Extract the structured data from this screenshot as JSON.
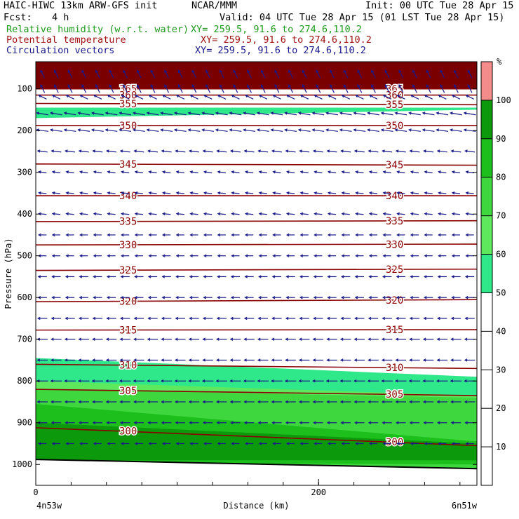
{
  "header": {
    "model": "HAIC-HIWC 13km ARW-GFS init",
    "org": "NCAR/MMM",
    "init": "Init: 00 UTC Tue 28 Apr 15",
    "fcst_label": "Fcst:",
    "fcst_value": "4 h",
    "valid": "Valid: 04 UTC Tue 28 Apr 15 (01 LST Tue 28 Apr 15)"
  },
  "fields": [
    {
      "label": "Relative humidity (w.r.t. water)",
      "xy": "XY= 259.5, 91.6 to 274.6,110.2",
      "color": "#1e9a1e"
    },
    {
      "label": "Potential temperature",
      "xy": "XY= 259.5, 91.6 to 274.6,110.2",
      "color": "#a01414"
    },
    {
      "label": "Circulation vectors",
      "xy": "XY= 259.5, 91.6 to 274.6,110.2",
      "color": "#1a1a8a"
    }
  ],
  "chart_data": {
    "type": "cross-section",
    "ylabel": "Pressure (hPa)",
    "xlabel": "Distance (km)",
    "x_tick_labels": [
      "0",
      "200"
    ],
    "x_ticks": [
      0,
      200
    ],
    "xlim": [
      0,
      312
    ],
    "x_endpoints": [
      "4n53w",
      "6n51w"
    ],
    "y_ticks": [
      100,
      200,
      300,
      400,
      500,
      600,
      700,
      800,
      900,
      1000
    ],
    "ylim": [
      1050,
      35
    ],
    "colorbar": {
      "unit": "%",
      "levels": [
        10,
        20,
        30,
        40,
        50,
        60,
        70,
        80,
        90,
        100
      ],
      "bins": [
        {
          "from": 50,
          "to": 60,
          "color": "#2fe88a"
        },
        {
          "from": 60,
          "to": 70,
          "color": "#5ee85e"
        },
        {
          "from": 70,
          "to": 80,
          "color": "#3ed83e"
        },
        {
          "from": 80,
          "to": 90,
          "color": "#1cbf1c"
        },
        {
          "from": 90,
          "to": 100,
          "color": "#0c9a0c"
        },
        {
          "from": 100,
          "to": 110,
          "color": "#f58c8c"
        }
      ]
    },
    "rh_bands": [
      {
        "rh": 50,
        "color": "#2fe88a",
        "x": [
          0,
          312
        ],
        "top": [
          145,
          145
        ],
        "bottom": [
          170,
          150
        ]
      },
      {
        "rh": 50,
        "color": "#2fe88a",
        "x": [
          0,
          312
        ],
        "top": [
          745,
          790
        ],
        "bottom": [
          1010,
          1010
        ]
      },
      {
        "rh": 60,
        "color": "#5ee85e",
        "x": [
          0,
          312
        ],
        "top": [
          800,
          835
        ],
        "bottom": [
          1010,
          1010
        ]
      },
      {
        "rh": 70,
        "color": "#3ed83e",
        "x": [
          0,
          312
        ],
        "top": [
          820,
          840
        ],
        "bottom": [
          1005,
          1010
        ]
      },
      {
        "rh": 80,
        "color": "#1cbf1c",
        "x": [
          0,
          312
        ],
        "top": [
          855,
          945
        ],
        "bottom": [
          995,
          1000
        ]
      },
      {
        "rh": 90,
        "color": "#0c9a0c",
        "x": [
          0,
          312
        ],
        "top": [
          900,
          950
        ],
        "bottom": [
          990,
          990
        ]
      }
    ],
    "stratosphere": {
      "color": "#7a0000",
      "from": 35,
      "to": 100
    },
    "isentropes": [
      {
        "theta": "365",
        "p": [
          100,
          100
        ]
      },
      {
        "theta": "360",
        "p": [
          115,
          115
        ]
      },
      {
        "theta": "355",
        "p": [
          135,
          138
        ]
      },
      {
        "theta": "350",
        "p": [
          188,
          188
        ]
      },
      {
        "theta": "345",
        "p": [
          280,
          283
        ]
      },
      {
        "theta": "340",
        "p": [
          356,
          356
        ]
      },
      {
        "theta": "335",
        "p": [
          418,
          416
        ]
      },
      {
        "theta": "330",
        "p": [
          474,
          472
        ]
      },
      {
        "theta": "325",
        "p": [
          535,
          532
        ]
      },
      {
        "theta": "320",
        "p": [
          610,
          605
        ]
      },
      {
        "theta": "315",
        "p": [
          678,
          677
        ]
      },
      {
        "theta": "310",
        "p": [
          760,
          770
        ]
      },
      {
        "theta": "305",
        "p": [
          820,
          835
        ]
      },
      {
        "theta": "300",
        "p": [
          912,
          955
        ]
      }
    ],
    "ground": {
      "p_left": 988,
      "p_right": 1010
    },
    "vector_levels": [
      {
        "p": 65,
        "u": -1.0,
        "v": 2.0
      },
      {
        "p": 100,
        "u": -1.0,
        "v": 2.0
      },
      {
        "p": 120,
        "u": -2.0,
        "v": 1.0
      },
      {
        "p": 160,
        "u": -3.0,
        "v": 0.5
      },
      {
        "p": 200,
        "u": -3.0,
        "v": 0.4
      },
      {
        "p": 250,
        "u": -2.5,
        "v": 0.3
      },
      {
        "p": 300,
        "u": -2.0,
        "v": 0.3
      },
      {
        "p": 350,
        "u": -2.0,
        "v": 0.2
      },
      {
        "p": 400,
        "u": -2.0,
        "v": 0.2
      },
      {
        "p": 450,
        "u": -2.0,
        "v": 0.0
      },
      {
        "p": 500,
        "u": -2.0,
        "v": 0.0
      },
      {
        "p": 550,
        "u": -2.2,
        "v": 0.0
      },
      {
        "p": 600,
        "u": -2.2,
        "v": 0.0
      },
      {
        "p": 650,
        "u": -2.4,
        "v": 0.0
      },
      {
        "p": 700,
        "u": -2.6,
        "v": 0.0
      },
      {
        "p": 750,
        "u": -2.6,
        "v": 0.0
      },
      {
        "p": 800,
        "u": -2.8,
        "v": 0.0
      },
      {
        "p": 850,
        "u": -2.6,
        "v": 0.0
      },
      {
        "p": 900,
        "u": -2.4,
        "v": 0.0
      },
      {
        "p": 950,
        "u": -2.0,
        "v": 0.0
      },
      {
        "p": 1000,
        "u": -1.5,
        "v": 0.0
      }
    ]
  }
}
